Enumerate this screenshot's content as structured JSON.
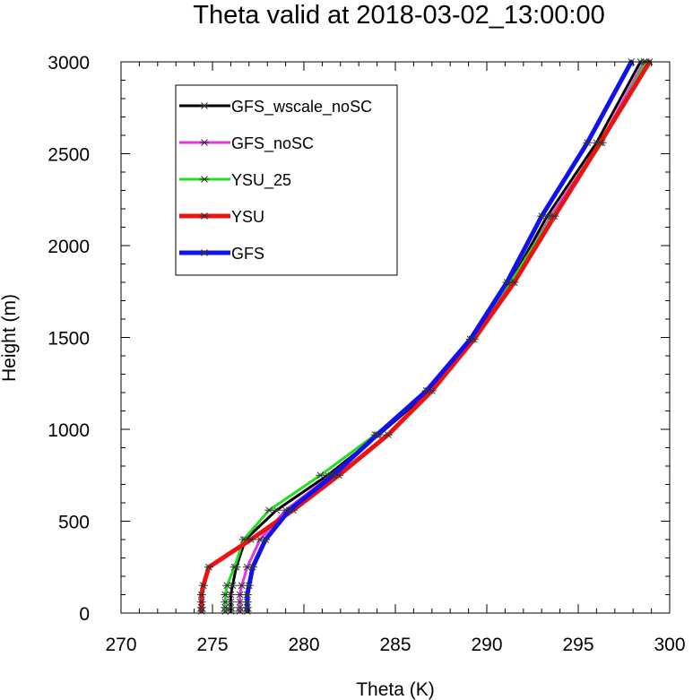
{
  "chart_data": {
    "type": "line",
    "title": "Theta valid at 2018-03-02_13:00:00",
    "xlabel": "Theta (K)",
    "ylabel": "Height (m)",
    "xlim": [
      270,
      300
    ],
    "ylim": [
      0,
      3000
    ],
    "xticks": [
      "270",
      "275",
      "280",
      "285",
      "290",
      "295",
      "300"
    ],
    "yticks": [
      "0",
      "500",
      "1000",
      "1500",
      "2000",
      "2500",
      "3000"
    ],
    "legend_position": "top-left",
    "series": [
      {
        "name": "GFS_wscale_noSC",
        "color": "#000000",
        "width": "thin",
        "points": [
          [
            276.0,
            10
          ],
          [
            276.0,
            30
          ],
          [
            276.0,
            60
          ],
          [
            276.0,
            100
          ],
          [
            276.1,
            150
          ],
          [
            276.3,
            250
          ],
          [
            276.8,
            400
          ],
          [
            278.5,
            560
          ],
          [
            281.3,
            750
          ],
          [
            284.1,
            970
          ],
          [
            286.9,
            1210
          ],
          [
            289.2,
            1490
          ],
          [
            291.3,
            1800
          ],
          [
            293.3,
            2160
          ],
          [
            296.0,
            2560
          ],
          [
            298.4,
            3000
          ]
        ]
      },
      {
        "name": "GFS_noSC",
        "color": "#e535e5",
        "width": "thin",
        "points": [
          [
            276.5,
            10
          ],
          [
            276.5,
            30
          ],
          [
            276.5,
            60
          ],
          [
            276.5,
            100
          ],
          [
            276.6,
            150
          ],
          [
            276.9,
            250
          ],
          [
            277.6,
            400
          ],
          [
            279.0,
            560
          ],
          [
            281.5,
            750
          ],
          [
            284.0,
            970
          ],
          [
            286.8,
            1210
          ],
          [
            289.2,
            1490
          ],
          [
            291.4,
            1800
          ],
          [
            293.5,
            2160
          ],
          [
            296.2,
            2560
          ],
          [
            298.6,
            3000
          ]
        ]
      },
      {
        "name": "YSU_25",
        "color": "#22dd22",
        "width": "thin",
        "points": [
          [
            275.7,
            10
          ],
          [
            275.7,
            30
          ],
          [
            275.7,
            60
          ],
          [
            275.7,
            100
          ],
          [
            275.8,
            150
          ],
          [
            276.2,
            250
          ],
          [
            276.7,
            400
          ],
          [
            278.1,
            560
          ],
          [
            280.9,
            750
          ],
          [
            283.9,
            970
          ],
          [
            286.7,
            1210
          ],
          [
            289.2,
            1490
          ],
          [
            291.3,
            1800
          ],
          [
            293.6,
            2160
          ],
          [
            296.3,
            2560
          ],
          [
            298.7,
            3000
          ]
        ]
      },
      {
        "name": "YSU",
        "color": "#ee1111",
        "width": "thick",
        "points": [
          [
            274.4,
            10
          ],
          [
            274.4,
            30
          ],
          [
            274.4,
            60
          ],
          [
            274.4,
            100
          ],
          [
            274.5,
            150
          ],
          [
            274.8,
            250
          ],
          [
            277.1,
            400
          ],
          [
            279.4,
            560
          ],
          [
            281.9,
            750
          ],
          [
            284.6,
            970
          ],
          [
            287.0,
            1210
          ],
          [
            289.3,
            1490
          ],
          [
            291.5,
            1800
          ],
          [
            293.7,
            2160
          ],
          [
            296.2,
            2560
          ],
          [
            298.9,
            3000
          ]
        ]
      },
      {
        "name": "GFS",
        "color": "#1111ee",
        "width": "thick",
        "points": [
          [
            276.9,
            10
          ],
          [
            276.9,
            30
          ],
          [
            276.9,
            60
          ],
          [
            276.9,
            100
          ],
          [
            277.0,
            150
          ],
          [
            277.2,
            250
          ],
          [
            277.9,
            400
          ],
          [
            279.2,
            560
          ],
          [
            281.6,
            750
          ],
          [
            284.0,
            970
          ],
          [
            286.7,
            1210
          ],
          [
            289.1,
            1490
          ],
          [
            291.1,
            1800
          ],
          [
            293.0,
            2160
          ],
          [
            295.5,
            2560
          ],
          [
            297.9,
            3000
          ]
        ]
      }
    ]
  }
}
